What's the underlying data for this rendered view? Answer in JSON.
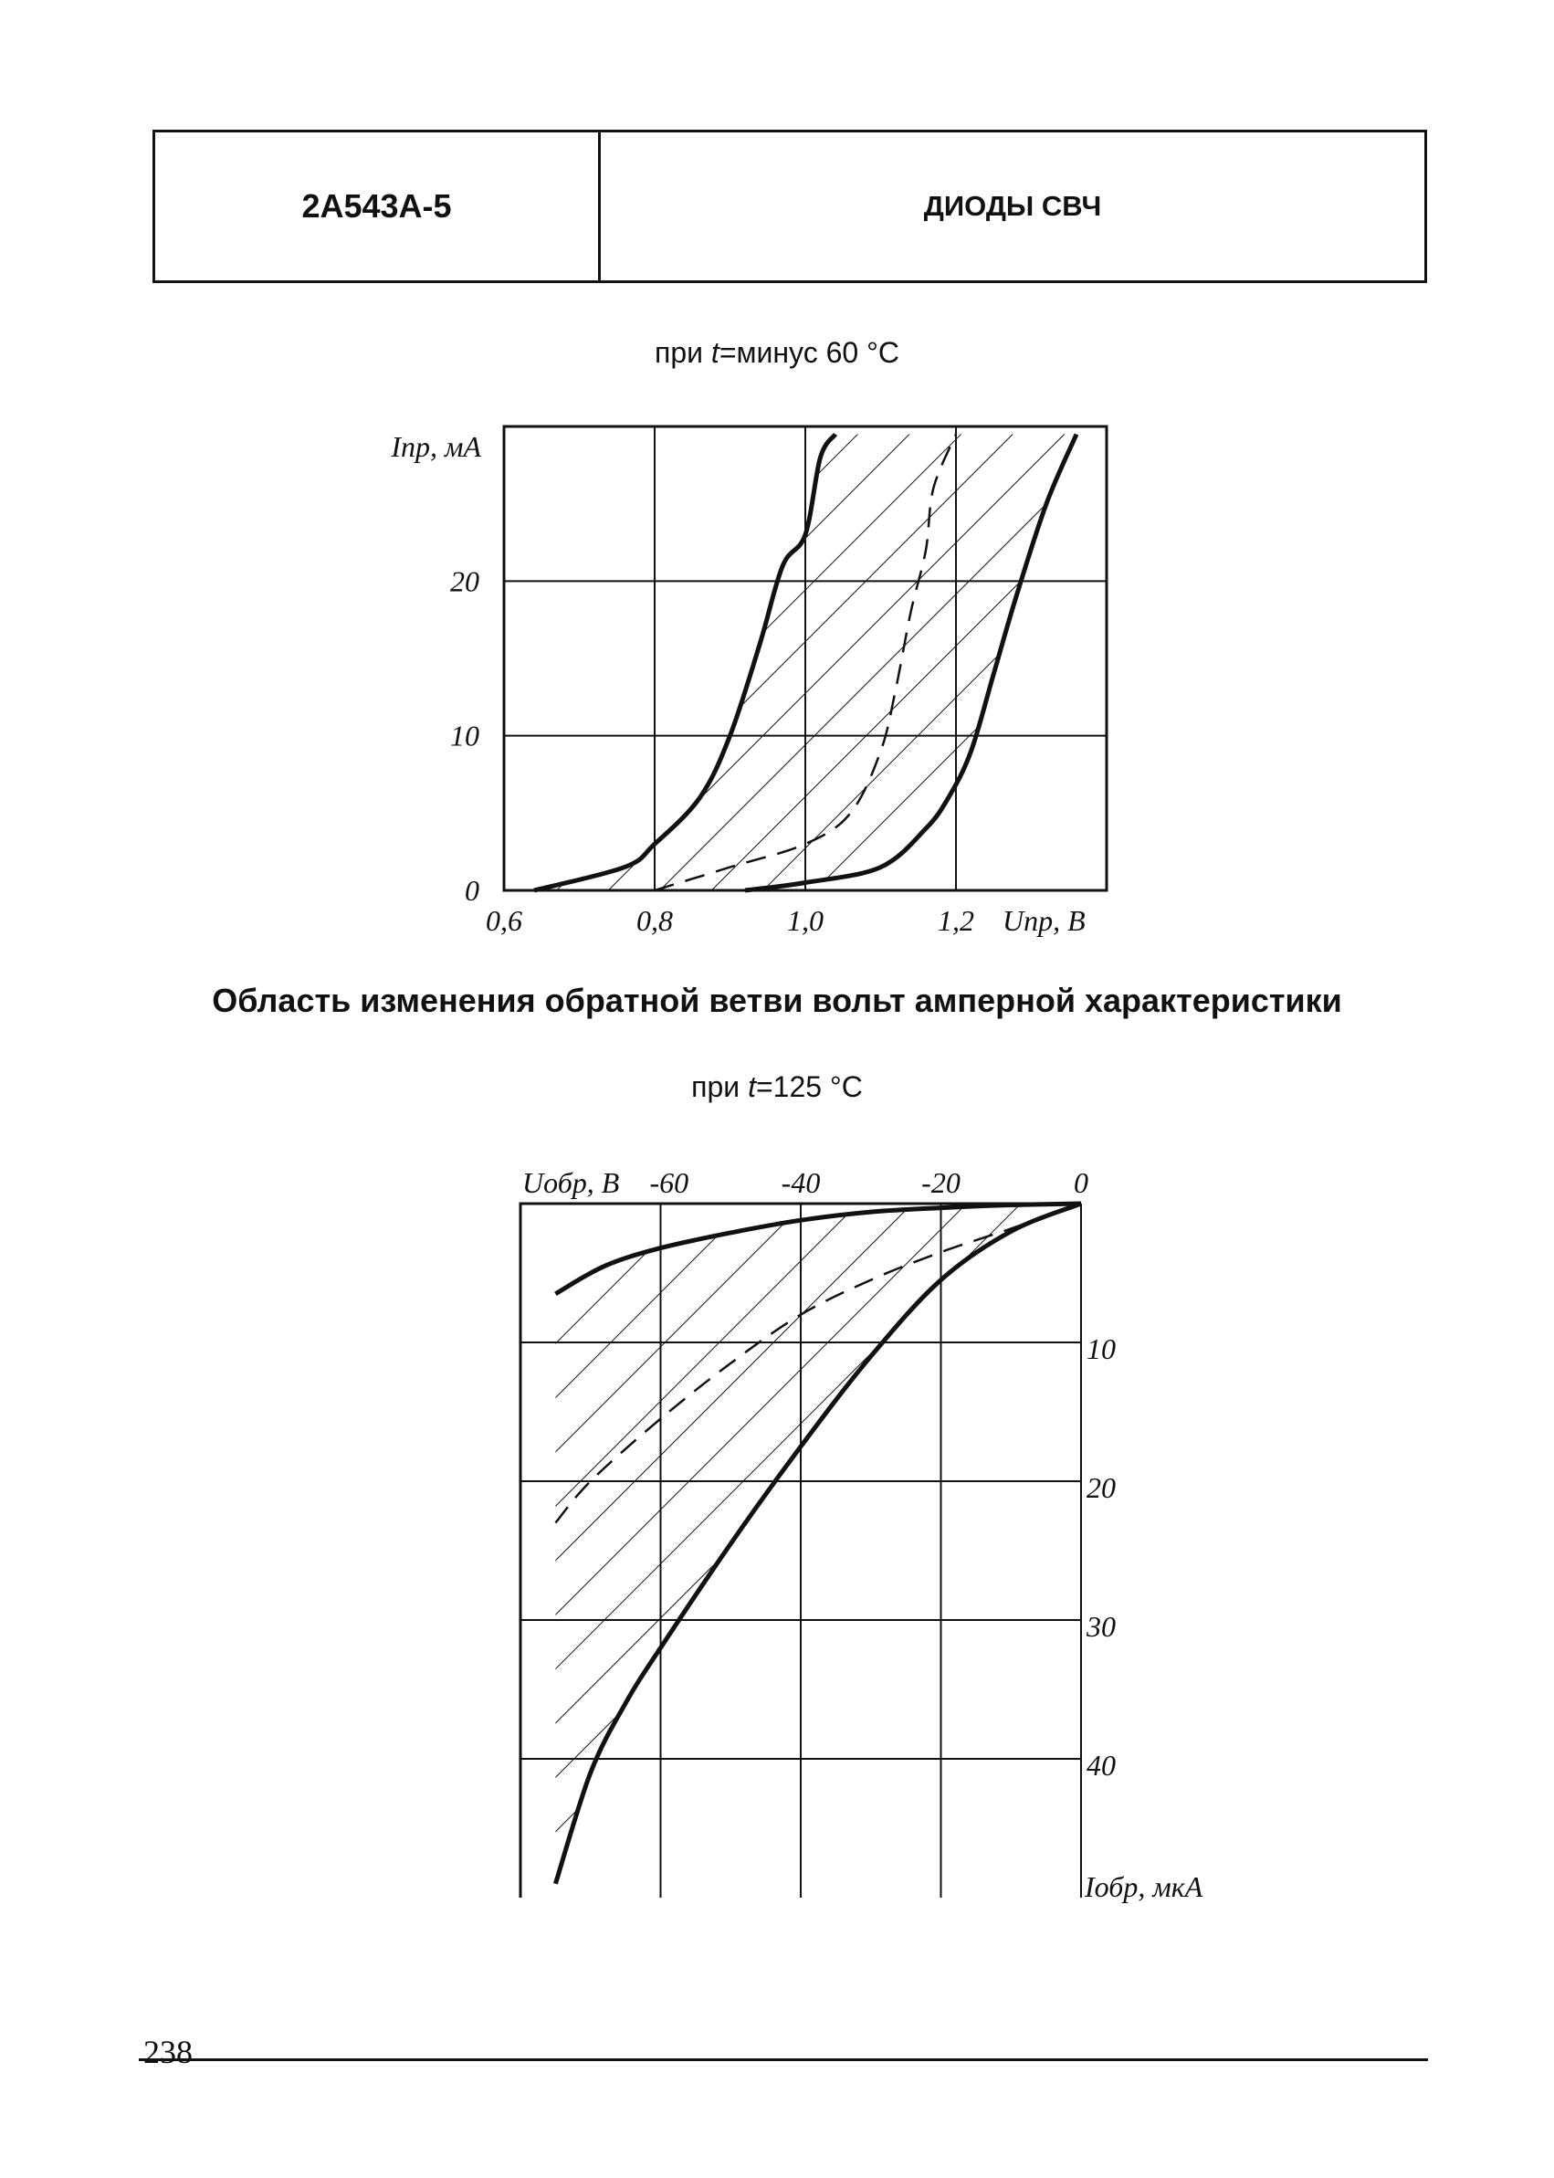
{
  "header": {
    "part_number": "2А543А-5",
    "category": "ДИОДЫ СВЧ"
  },
  "section_title": "Область изменения обратной ветви вольт амперной характеристики",
  "page_number": "238",
  "chart_data": [
    {
      "type": "line",
      "caption": {
        "prefix": "при ",
        "var": "t",
        "suffix": "=минус 60 °C"
      },
      "xlabel": "Uпр, В",
      "ylabel": "Iпр, мА",
      "xlim": [
        0.6,
        1.4
      ],
      "ylim": [
        0,
        30
      ],
      "x_ticks": [
        "0,6",
        "0,8",
        "1,0",
        "1,2"
      ],
      "y_ticks": [
        "0",
        "10",
        "20"
      ],
      "grid": true,
      "hatched_region": "between upper and lower bound",
      "series": [
        {
          "style": "solid",
          "x": [
            0.64,
            0.76,
            0.8,
            0.86,
            0.9,
            0.94,
            0.97,
            1.0,
            1.02,
            1.04
          ],
          "y": [
            0.0,
            1.5,
            3.0,
            6.0,
            10.0,
            16.0,
            21.0,
            23.0,
            28.0,
            29.5
          ]
        },
        {
          "style": "dashed",
          "x": [
            0.8,
            0.9,
            1.0,
            1.06,
            1.1,
            1.12,
            1.14,
            1.16,
            1.17,
            1.2
          ],
          "y": [
            0.0,
            1.5,
            3.0,
            5.0,
            9.0,
            13.0,
            18.0,
            22.0,
            26.0,
            29.5
          ]
        },
        {
          "style": "solid",
          "x": [
            0.92,
            1.0,
            1.1,
            1.16,
            1.19,
            1.22,
            1.25,
            1.28,
            1.32,
            1.36
          ],
          "y": [
            0.0,
            0.5,
            1.5,
            4.0,
            6.0,
            9.0,
            14.0,
            19.0,
            25.0,
            29.5
          ]
        }
      ]
    },
    {
      "type": "line",
      "caption": {
        "prefix": "при ",
        "var": "t",
        "suffix": "=125 °C"
      },
      "xlabel": "Uобр, В",
      "ylabel": "Iобр, мкА",
      "xlim": [
        -80,
        0
      ],
      "ylim": [
        0,
        50
      ],
      "x_ticks": [
        "-60",
        "-40",
        "-20",
        "0"
      ],
      "y_ticks": [
        "10",
        "20",
        "30",
        "40"
      ],
      "grid": true,
      "hatched_region": "between upper and lower bound",
      "series": [
        {
          "style": "solid",
          "x": [
            -75,
            -68,
            -60,
            -50,
            -40,
            -30,
            -20,
            -10,
            0
          ],
          "y": [
            6.5,
            4.5,
            3.2,
            2.1,
            1.2,
            0.6,
            0.3,
            0.1,
            0
          ]
        },
        {
          "style": "dashed",
          "x": [
            -75,
            -70,
            -60,
            -50,
            -40,
            -30,
            -20,
            -10,
            0
          ],
          "y": [
            23,
            20,
            15.5,
            11.5,
            8,
            5.5,
            3.5,
            1.8,
            0
          ]
        },
        {
          "style": "solid",
          "x": [
            -75,
            -70,
            -65,
            -60,
            -50,
            -40,
            -30,
            -20,
            -10,
            0
          ],
          "y": [
            49,
            41,
            36,
            32,
            24.5,
            17.5,
            11,
            5.5,
            2,
            0
          ]
        }
      ]
    }
  ]
}
